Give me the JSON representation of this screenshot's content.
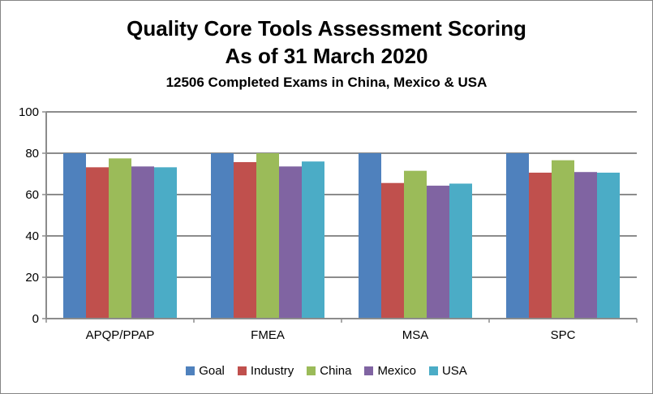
{
  "chart_data": {
    "type": "bar",
    "title": "Quality Core Tools Assessment Scoring",
    "subtitle_1": "As of 31 March 2020",
    "subtitle_2": "12506 Completed Exams in China, Mexico & USA",
    "categories": [
      "APQP/PPAP",
      "FMEA",
      "MSA",
      "SPC"
    ],
    "series": [
      {
        "name": "Goal",
        "color": "#4F81BD",
        "values": [
          80,
          80,
          80,
          80
        ]
      },
      {
        "name": "Industry",
        "color": "#C0504D",
        "values": [
          73.2,
          75.7,
          65.6,
          70.6
        ]
      },
      {
        "name": "China",
        "color": "#9BBB59",
        "values": [
          77.5,
          80,
          71.5,
          76.6
        ]
      },
      {
        "name": "Mexico",
        "color": "#8064A2",
        "values": [
          73.6,
          73.6,
          64.3,
          70.9
        ]
      },
      {
        "name": "USA",
        "color": "#4BACC6",
        "values": [
          73.2,
          76.0,
          65.3,
          70.6
        ]
      }
    ],
    "ylim": [
      0,
      100
    ],
    "yticks": [
      "0",
      "20",
      "40",
      "60",
      "80",
      "100"
    ],
    "grid": true,
    "legend_position": "bottom"
  }
}
